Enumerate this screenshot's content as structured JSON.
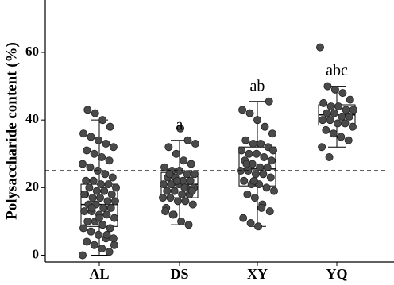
{
  "chart_data": {
    "type": "boxplot",
    "y_label": "Polysaccharide content (%)",
    "categories": [
      "AL",
      "DS",
      "XY",
      "YQ"
    ],
    "boxes": [
      {
        "min": 0,
        "q1": 8.5,
        "median": 15,
        "q3": 21,
        "max": 40
      },
      {
        "min": 9,
        "q1": 17,
        "median": 21,
        "q3": 24.5,
        "max": 34
      },
      {
        "min": 8.5,
        "q1": 20.5,
        "median": 25.5,
        "q3": 32,
        "max": 45.5
      },
      {
        "min": 32,
        "q1": 38.5,
        "median": 41.5,
        "q3": 44.5,
        "max": 50
      }
    ],
    "points": [
      [
        0,
        1,
        2,
        3,
        4,
        5,
        5,
        6,
        7,
        8,
        8,
        9,
        10,
        10,
        11,
        12,
        12,
        13,
        13,
        14,
        14,
        15,
        15,
        16,
        16,
        17,
        17,
        18,
        18,
        19,
        19,
        20,
        20,
        21,
        21,
        22,
        22,
        23,
        24,
        25,
        26,
        27,
        28,
        29,
        30,
        31,
        32,
        33,
        34,
        35,
        36,
        38,
        40,
        42,
        43,
        3,
        6,
        11,
        14,
        18
      ],
      [
        9,
        10,
        12,
        14,
        15,
        16,
        16,
        17,
        17,
        18,
        18,
        19,
        19,
        20,
        20,
        21,
        21,
        21,
        22,
        22,
        23,
        23,
        24,
        24,
        25,
        25,
        26,
        27,
        28,
        30,
        32,
        33,
        34,
        37.5,
        12,
        13,
        19,
        20,
        22,
        24
      ],
      [
        8.5,
        9.5,
        11,
        13,
        15,
        17,
        18,
        19,
        20,
        21,
        21,
        22,
        23,
        24,
        24,
        25,
        25,
        26,
        26,
        27,
        28,
        28,
        29,
        30,
        30,
        31,
        32,
        33,
        33,
        34,
        36,
        38,
        40,
        42,
        43,
        45.5,
        14,
        22,
        27,
        31
      ],
      [
        29,
        32,
        34,
        35,
        36,
        37,
        38,
        39,
        39,
        40,
        40,
        41,
        41,
        42,
        42,
        43,
        43,
        44,
        44,
        45,
        46,
        48,
        49,
        50,
        61.5
      ]
    ],
    "annotations": [
      null,
      "a",
      "ab",
      "abc"
    ],
    "hline": 25,
    "point_color": "#4a4a4a",
    "ylim": [
      -2,
      75.5
    ],
    "yticks": [
      0,
      20,
      40,
      60
    ]
  }
}
